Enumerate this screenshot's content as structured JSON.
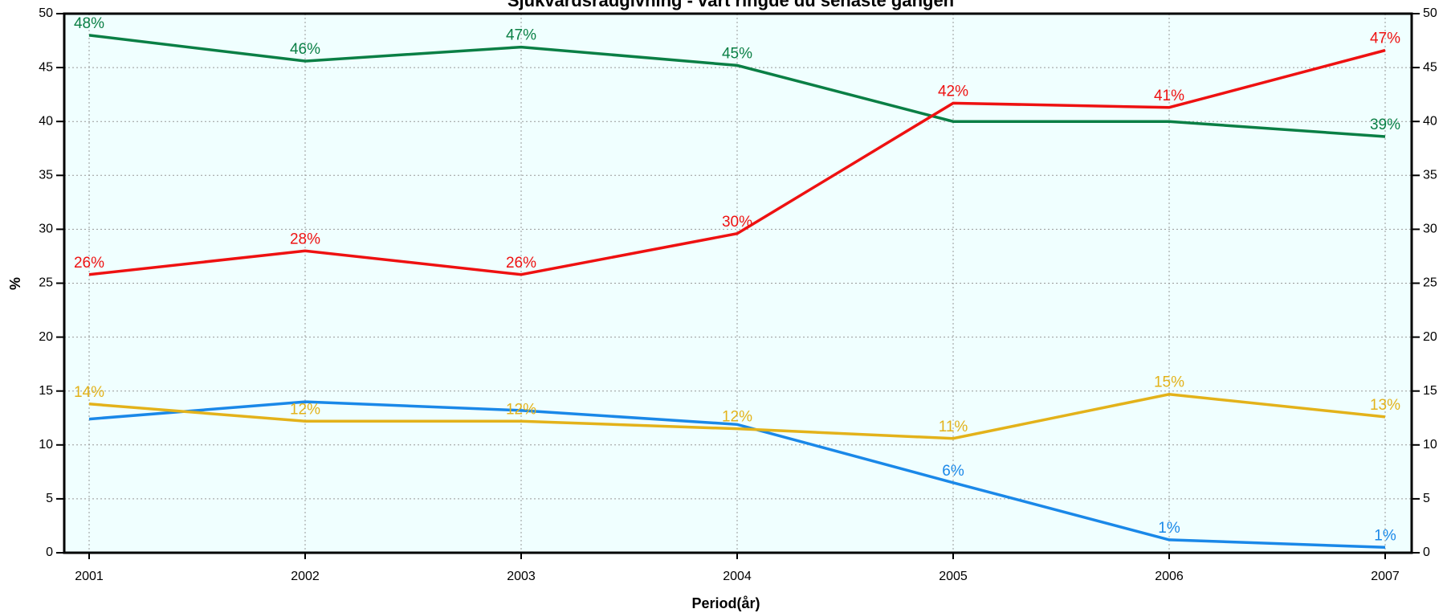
{
  "chart_data": {
    "type": "line",
    "title": "Sjukvårdsrådgivning - vart ringde du senaste gången",
    "x_label": "Period(år)",
    "y_label": "%",
    "categories": [
      "2001",
      "2002",
      "2003",
      "2004",
      "2005",
      "2006",
      "2007"
    ],
    "series": [
      {
        "color": "#0a7f45",
        "values": [
          48.0,
          45.6,
          46.9,
          45.2,
          40.0,
          40.0,
          38.6
        ],
        "value_labels": [
          "48%",
          "46%",
          "47%",
          "45%",
          null,
          null,
          "39%"
        ]
      },
      {
        "color": "#ee1111",
        "values": [
          25.8,
          28.0,
          25.8,
          29.6,
          41.7,
          41.3,
          46.6
        ],
        "value_labels": [
          "26%",
          "28%",
          "26%",
          "30%",
          "42%",
          "41%",
          "47%"
        ]
      },
      {
        "color": "#1a88e8",
        "values": [
          12.4,
          14.0,
          13.2,
          11.9,
          6.5,
          1.2,
          0.5
        ],
        "value_labels": [
          null,
          null,
          null,
          null,
          "6%",
          "1%",
          "1%"
        ]
      },
      {
        "color": "#e3b21a",
        "values": [
          13.8,
          12.2,
          12.2,
          11.5,
          10.6,
          14.7,
          12.6
        ],
        "value_labels": [
          "14%",
          "12%",
          "12%",
          "12%",
          "11%",
          "15%",
          "13%"
        ]
      }
    ],
    "ylim": [
      0,
      50
    ],
    "yticks": [
      0,
      5,
      10,
      15,
      20,
      25,
      30,
      35,
      40,
      45,
      50
    ],
    "grid": true,
    "background": "#f0ffff"
  }
}
